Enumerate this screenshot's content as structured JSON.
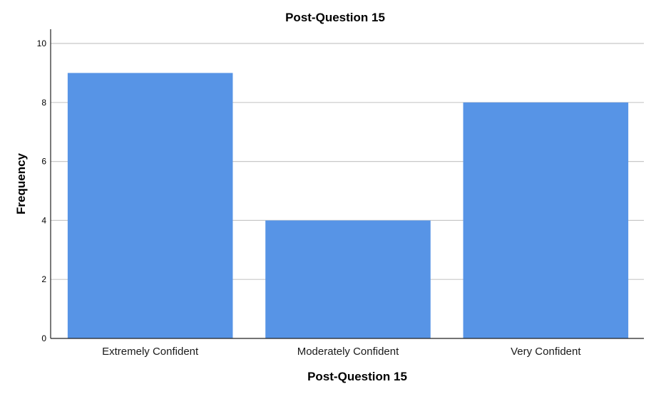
{
  "chart_data": {
    "type": "bar",
    "title": "Post-Question 15",
    "xlabel": "Post-Question 15",
    "ylabel": "Frequency",
    "categories": [
      "Extremely Confident",
      "Moderately Confident",
      "Very Confident"
    ],
    "values": [
      9,
      4,
      8
    ],
    "ylim": [
      0,
      10
    ],
    "yticks": [
      0,
      2,
      4,
      6,
      8,
      10
    ],
    "grid": true,
    "bar_color": "#5794e6",
    "legend": "none"
  }
}
